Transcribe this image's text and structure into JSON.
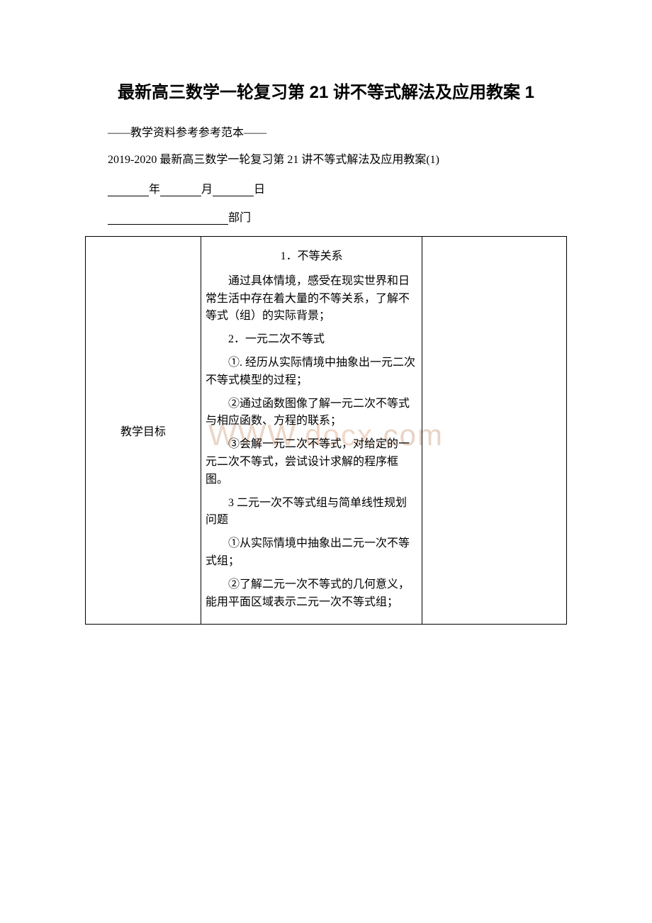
{
  "title": "最新高三数学一轮复习第 21 讲不等式解法及应用教案 1",
  "subtitle": "——教学资料参考参考范本——",
  "line2": "2019-2020 最新高三数学一轮复习第 21 讲不等式解法及应用教案(1)",
  "date": {
    "year": "年",
    "month": "月",
    "day": "日"
  },
  "dept": "部门",
  "watermark_left": "WWW.",
  "watermark_mid": "docx",
  "watermark_right": ".com",
  "table": {
    "row_label": "教学目标",
    "p1": "1．不等关系",
    "p2": "通过具体情境，感受在现实世界和日常生活中存在着大量的不等关系，了解不等式（组）的实际背景；",
    "p3": "2．一元二次不等式",
    "p4": "①. 经历从实际情境中抽象出一元二次不等式模型的过程；",
    "p5": "②通过函数图像了解一元二次不等式与相应函数、方程的联系；",
    "p6": "③会解一元二次不等式，对给定的一元二次不等式，尝试设计求解的程序框图。",
    "p7": "3 二元一次不等式组与简单线性规划问题",
    "p8": "①从实际情境中抽象出二元一次不等式组；",
    "p9": "②了解二元一次不等式的几何意义，能用平面区域表示二元一次不等式组；"
  }
}
